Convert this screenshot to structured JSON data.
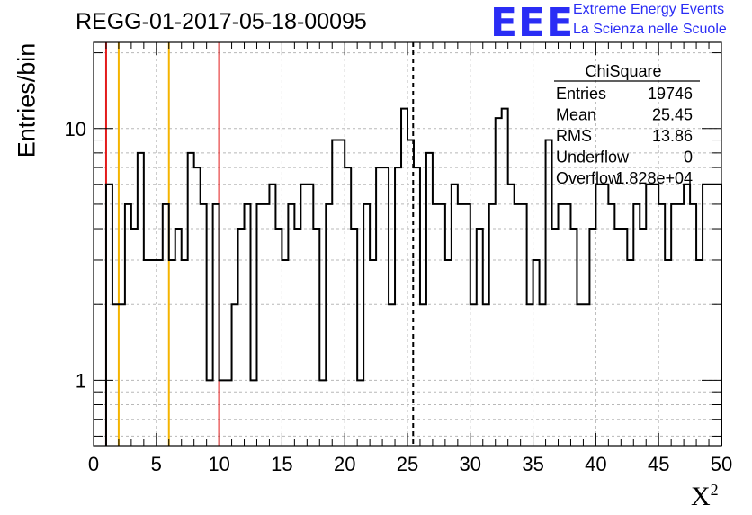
{
  "header": {
    "run_title": "REGG-01-2017-05-18-00095",
    "logo_mark": "EEE",
    "logo_line1": "Extreme Energy Events",
    "logo_line2": "La Scienza nelle Scuole"
  },
  "stats_box": {
    "name": "ChiSquare",
    "rows": [
      {
        "label": "Entries",
        "value": "19746"
      },
      {
        "label": "Mean",
        "value": "25.45"
      },
      {
        "label": "RMS",
        "value": "13.86"
      },
      {
        "label": "Underflow",
        "value": "0"
      },
      {
        "label": "Overflow",
        "value": "1.828e+04"
      }
    ]
  },
  "colors": {
    "histogram": "#000000",
    "red_lines": "#e31b1b",
    "yellow_lines": "#f5b400",
    "mean_line": "#000000",
    "grid": "#b8b8b8",
    "logo": "#2a2df5"
  },
  "chart_data": {
    "type": "histogram",
    "ylabel": "Entries/bin",
    "xlabel": "X",
    "xlabel_sup": "2",
    "xlim": [
      0,
      50
    ],
    "ylim": [
      0.55,
      22
    ],
    "yscale": "log",
    "grid": true,
    "bin_width": 0.5,
    "x_ticks": [
      "0",
      "5",
      "10",
      "15",
      "20",
      "25",
      "30",
      "35",
      "40",
      "45",
      "50"
    ],
    "y_ticks": [
      {
        "value": 1,
        "label": "1"
      },
      {
        "value": 10,
        "label": "10"
      }
    ],
    "bin_start": 1.0,
    "values": [
      6,
      2,
      2,
      5,
      4,
      8,
      3,
      3,
      3,
      5,
      3,
      4,
      3,
      8,
      7,
      5,
      1,
      5,
      1,
      1,
      2,
      4,
      5,
      1,
      5,
      5,
      6,
      4,
      3,
      5,
      4,
      6,
      6,
      4,
      1,
      5,
      9,
      9,
      7,
      4,
      1,
      5,
      3,
      7,
      7,
      2,
      7,
      12,
      9,
      7,
      2,
      8,
      5,
      5,
      3,
      6,
      5,
      5,
      2,
      4,
      2,
      5,
      11,
      12,
      6,
      5,
      5,
      2,
      3,
      2,
      9,
      4,
      5,
      5,
      4,
      2,
      2,
      4,
      6,
      6,
      5,
      4,
      4,
      3,
      5,
      4,
      6,
      6,
      5,
      3,
      5,
      5,
      6,
      5,
      3,
      6,
      6,
      6
    ],
    "reference_lines": [
      {
        "x": 1,
        "style": "red"
      },
      {
        "x": 2,
        "style": "yellow"
      },
      {
        "x": 6,
        "style": "yellow"
      },
      {
        "x": 10,
        "style": "red"
      },
      {
        "x": 25.45,
        "style": "dashed"
      }
    ]
  }
}
